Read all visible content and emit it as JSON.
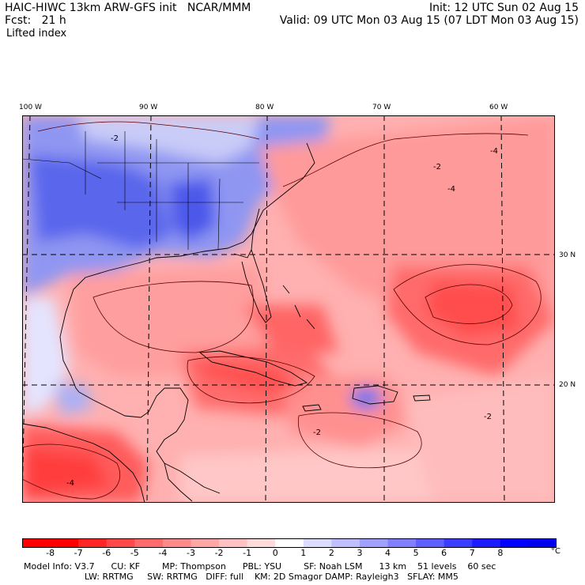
{
  "header": {
    "model": "HAIC-HIWC 13km ARW-GFS init",
    "org": "NCAR/MMM",
    "init": "Init: 12 UTC Sun 02 Aug 15",
    "forecast": "Fcst:   21 h",
    "valid": "Valid: 09 UTC Mon 03 Aug 15 (07 LDT Mon 03 Aug 15)",
    "field": "Lifted index"
  },
  "axes": {
    "longitude_labels": [
      "100 W",
      "90 W",
      "80 W",
      "70 W",
      "60 W"
    ],
    "latitude_labels": [
      "30 N",
      "20 N"
    ]
  },
  "colorbar": {
    "unit": "°C",
    "tick_labels": [
      "-8",
      "-7",
      "-6",
      "-5",
      "-4",
      "-3",
      "-2",
      "-1",
      "0",
      "1",
      "2",
      "3",
      "4",
      "5",
      "6",
      "7",
      "8"
    ],
    "colors": [
      "#ff0000",
      "#ff2525",
      "#ff4848",
      "#ff6a6a",
      "#ff8a8a",
      "#ffa6a6",
      "#ffc1c1",
      "#ffdcdc",
      "#ffffff",
      "#dcdcff",
      "#bfbfff",
      "#a0a0ff",
      "#8080ff",
      "#5f5fff",
      "#3c3cff",
      "#1c1cff",
      "#0000ff"
    ]
  },
  "contour_labels": [
    "-2",
    "-4",
    "-2",
    "-4",
    "-2",
    "-4",
    "-2"
  ],
  "footer": {
    "line1": "Model Info: V3.7      CU: KF        MP: Thompson      PBL: YSU        SF: Noah LSM      13 km    51 levels    60 sec",
    "line2": "                      LW: RRTMG     SW: RRTMG   DIFF: full    KM: 2D Smagor DAMP: Rayleigh3   SFLAY: MM5"
  }
}
